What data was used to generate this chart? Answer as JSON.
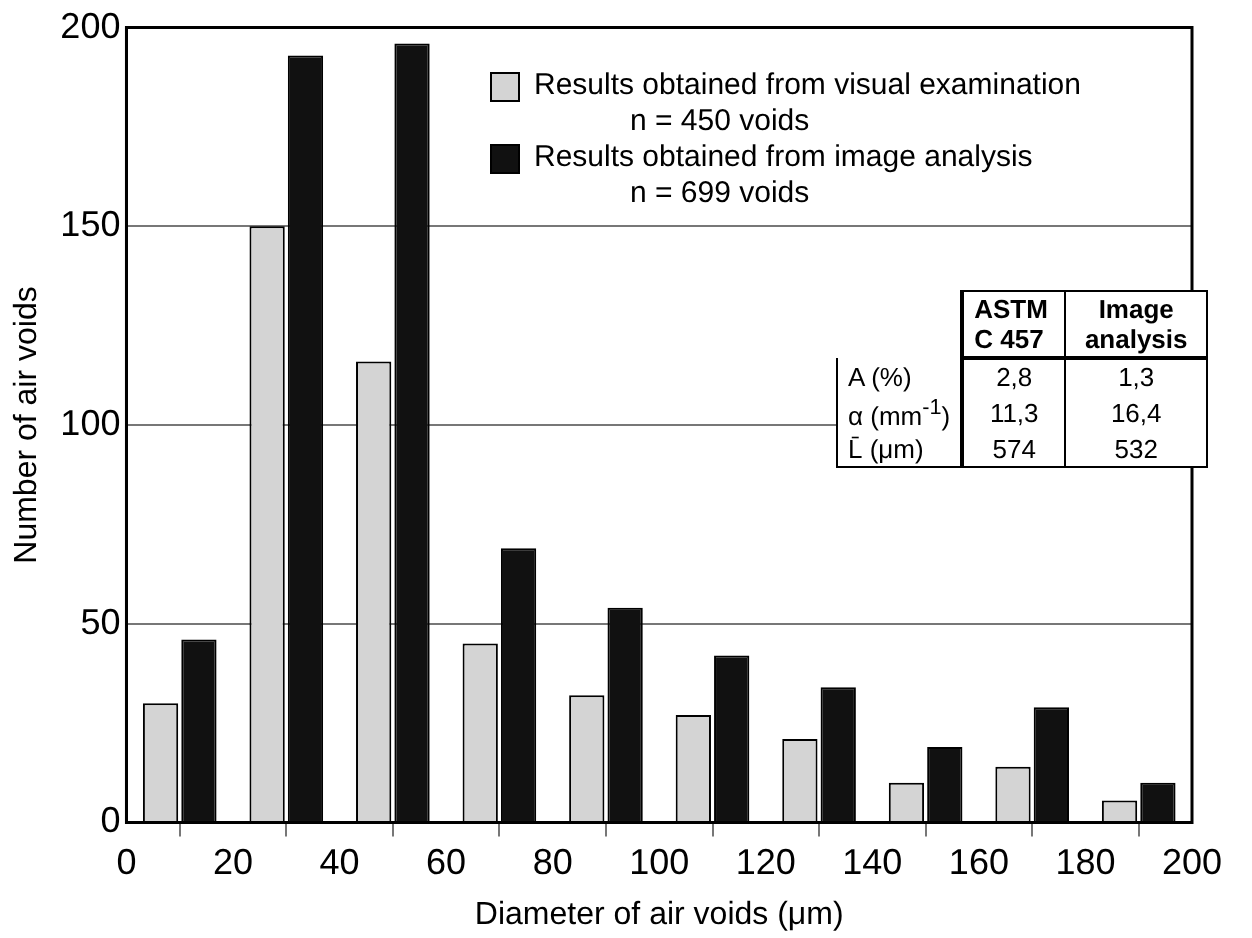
{
  "chart_data": {
    "type": "bar",
    "xlabel": "Diameter of air voids (μm)",
    "ylabel": "Number of air voids",
    "x": [
      10,
      30,
      50,
      70,
      90,
      110,
      130,
      150,
      170,
      190
    ],
    "series": [
      {
        "name": "Results obtained from visual examination",
        "color": "#d4d4d4",
        "values": [
          30,
          150,
          116,
          45,
          32,
          27,
          21,
          10,
          14,
          5.5
        ]
      },
      {
        "name": "Results obtained from image analysis",
        "color": "#111111",
        "values": [
          46,
          193,
          196,
          69,
          54,
          42,
          34,
          19,
          29,
          10
        ]
      }
    ],
    "xlim": [
      0,
      200
    ],
    "xticks": [
      0,
      20,
      40,
      60,
      80,
      100,
      120,
      140,
      160,
      180,
      200
    ],
    "ylim": [
      0,
      200
    ],
    "yticks": [
      0,
      50,
      100,
      150,
      200
    ],
    "grid": "y",
    "legend": "top right",
    "annotations": [
      "n = 450 voids",
      "n = 699 voids",
      "ASTM C 457",
      "Image analysis",
      "A (%)",
      "2,8",
      "1,3",
      "α (mm$^{-1}$)",
      "11,3",
      "16,4",
      "L̄ (μm)",
      "574",
      "532"
    ]
  }
}
